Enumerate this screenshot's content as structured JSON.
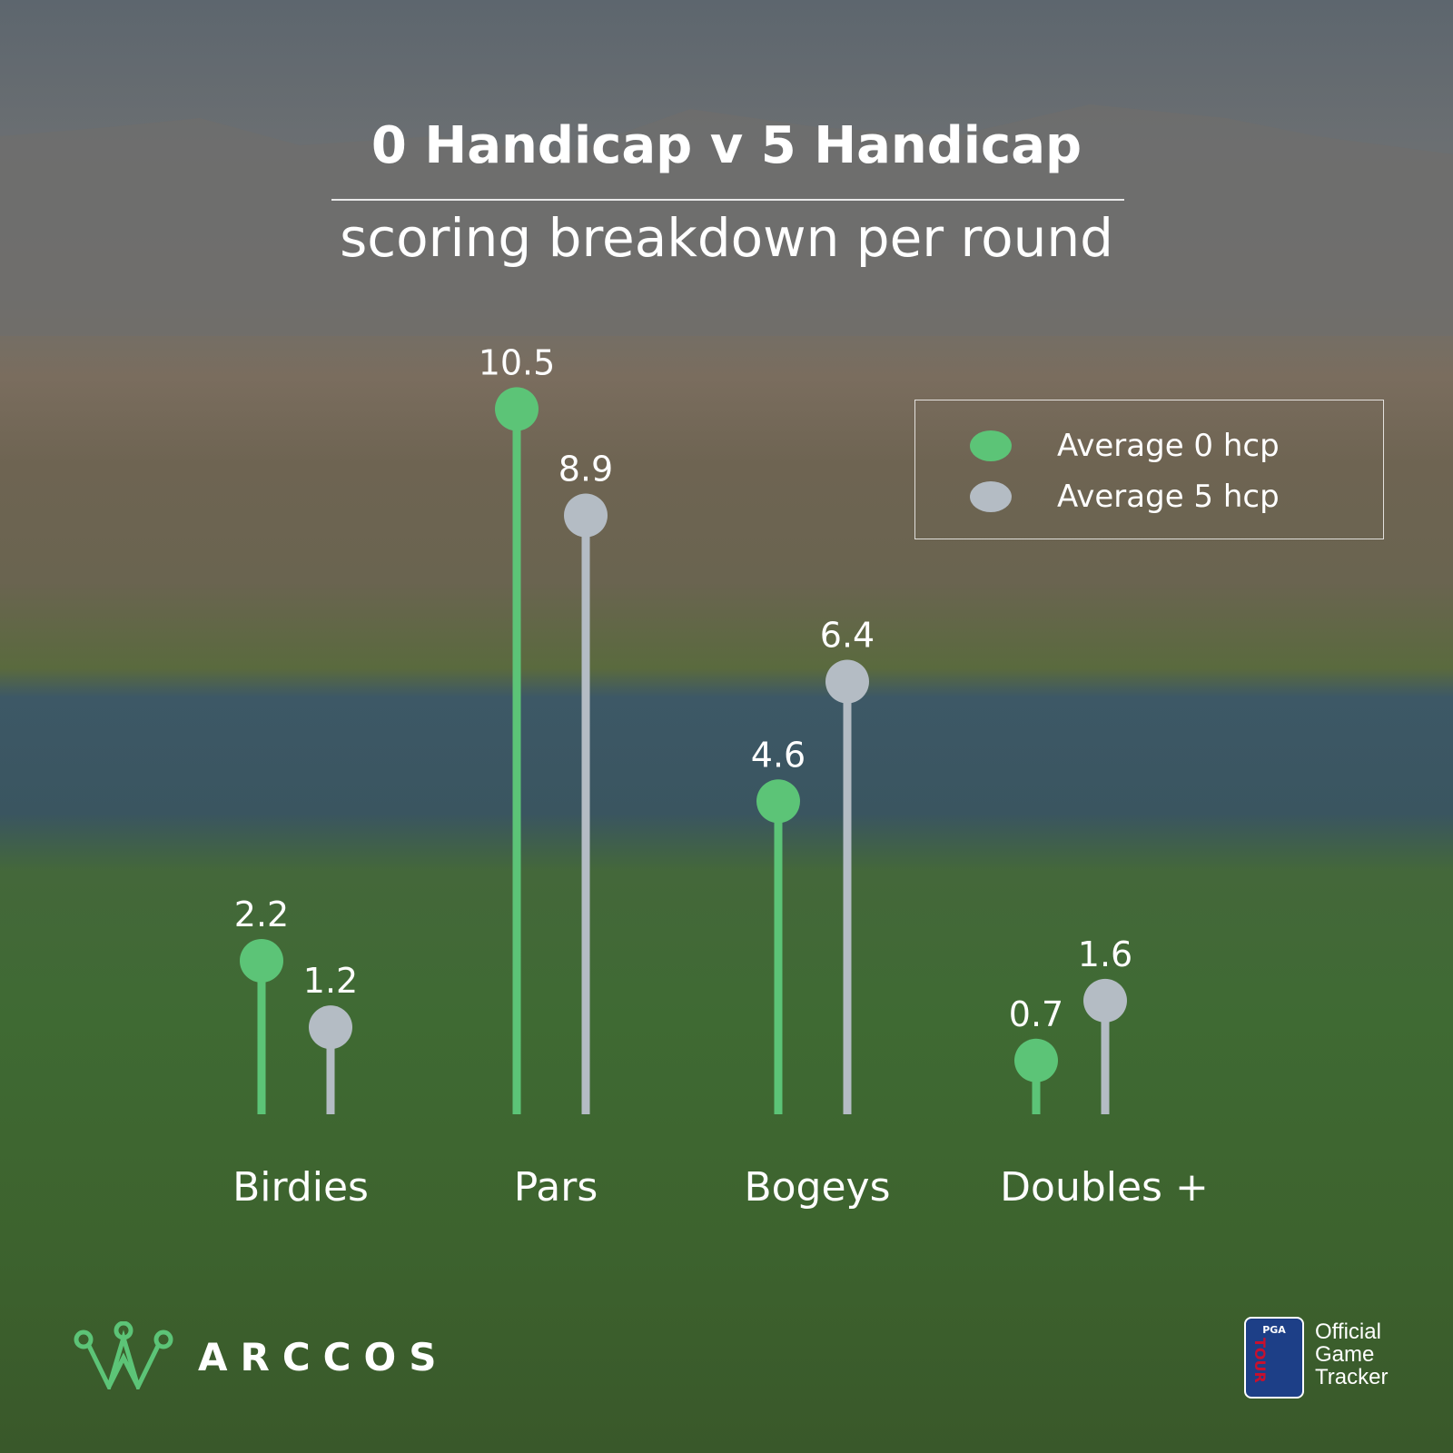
{
  "chart_data": {
    "type": "lollipop",
    "title": "0 Handicap v 5 Handicap",
    "subtitle": "scoring breakdown per round",
    "categories": [
      "Birdies",
      "Pars",
      "Bogeys",
      "Doubles +"
    ],
    "series": [
      {
        "name": "Average 0 hcp",
        "color": "#5cc477",
        "values": [
          2.2,
          10.5,
          4.6,
          0.7
        ]
      },
      {
        "name": "Average 5 hcp",
        "color": "#b4bcc4",
        "values": [
          1.2,
          8.9,
          6.4,
          1.6
        ]
      }
    ],
    "legend_position": "top-right",
    "grid": false
  },
  "branding": {
    "logo": "ARCCOS",
    "partner_logo": "PGA TOUR",
    "partner_text": [
      "Official",
      "Game",
      "Tracker"
    ]
  }
}
